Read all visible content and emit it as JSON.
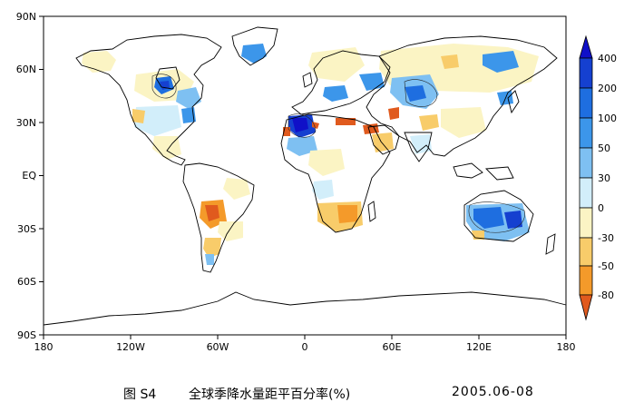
{
  "map": {
    "lat_labels": [
      "90N",
      "60N",
      "30N",
      "EQ",
      "30S",
      "60S",
      "90S"
    ],
    "lon_labels": [
      "180",
      "120W",
      "60W",
      "0",
      "60E",
      "120E",
      "180"
    ]
  },
  "colorbar": {
    "labels": [
      "400",
      "200",
      "100",
      "50",
      "30",
      "0",
      "-30",
      "-50",
      "-80"
    ],
    "colors": {
      "top_triangle": "#1010c8",
      "b400_200": "#1540d0",
      "b200_100": "#1e6ee0",
      "b100_50": "#3c96ea",
      "b50_30": "#7ec0f2",
      "b30_0": "#d2eefa",
      "b0_m30": "#fbf4c4",
      "bm30_m50": "#f8cc6a",
      "bm50_m80": "#f49a2a",
      "bottom_triangle": "#e05a1e"
    }
  },
  "caption": {
    "figure": "图 S4",
    "title": "全球季降水量距平百分率(%)",
    "period": "2005.06-08"
  }
}
